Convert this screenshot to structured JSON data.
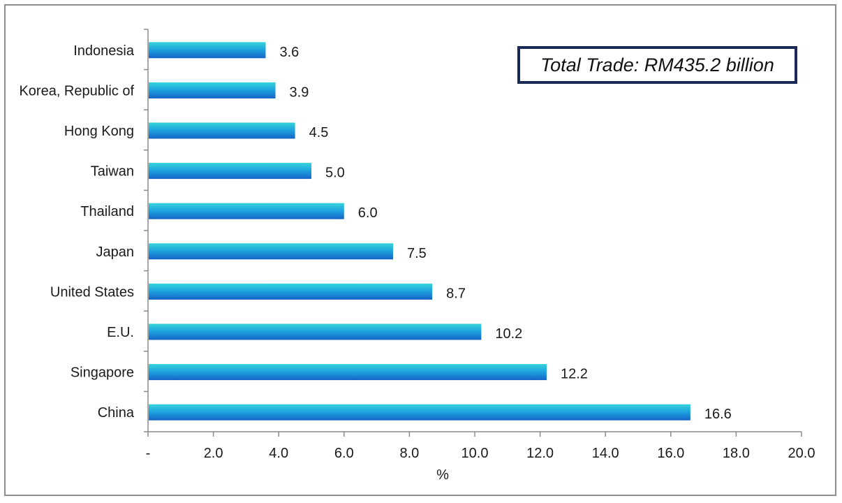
{
  "chart_data": {
    "type": "bar",
    "orientation": "horizontal",
    "categories": [
      "Indonesia",
      "Korea, Republic of",
      "Hong Kong",
      "Taiwan",
      "Thailand",
      "Japan",
      "United States",
      "E.U.",
      "Singapore",
      "China"
    ],
    "values": [
      3.6,
      3.9,
      4.5,
      5.0,
      6.0,
      7.5,
      8.7,
      10.2,
      12.2,
      16.6
    ],
    "value_labels": [
      "3.6",
      "3.9",
      "4.5",
      "5.0",
      "6.0",
      "7.5",
      "8.7",
      "10.2",
      "12.2",
      "16.6"
    ],
    "xlabel": "%",
    "xlim": [
      0,
      20
    ],
    "x_ticks": [
      0,
      2,
      4,
      6,
      8,
      10,
      12,
      14,
      16,
      18,
      20
    ],
    "x_tick_labels": [
      "-",
      "2.0",
      "4.0",
      "6.0",
      "8.0",
      "10.0",
      "12.0",
      "14.0",
      "16.0",
      "18.0",
      "20.0"
    ],
    "annotation": "Total Trade: RM435.2 billion",
    "grid": false,
    "bar_colors": {
      "top": "#34d4d8",
      "bottom": "#1464c8"
    }
  }
}
